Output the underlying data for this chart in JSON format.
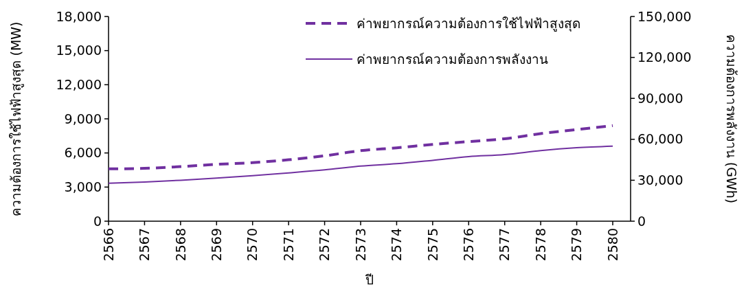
{
  "chart_data": {
    "type": "line",
    "xlabel": "ปี",
    "ylabel": "ความต้องการใช้ไฟฟ้าสูงสุด (MW)",
    "y2label": "ความต้องการพลังงาน (GWh)",
    "categories": [
      "2566",
      "2567",
      "2568",
      "2569",
      "2570",
      "2571",
      "2572",
      "2573",
      "2574",
      "2575",
      "2576",
      "2577",
      "2578",
      "2579",
      "2580"
    ],
    "series": [
      {
        "name": "ค่าพยากรณ์ความต้องการใช้ไฟฟ้าสูงสุด",
        "color": "#7030a0",
        "line_style": "dashed",
        "values": [
          4600,
          4650,
          4800,
          5000,
          5150,
          5400,
          5750,
          6200,
          6450,
          6750,
          7000,
          7250,
          7700,
          8050,
          8400
        ]
      },
      {
        "name": "ค่าพยากรณ์ความต้องการพลังงาน",
        "color": "#7030a0",
        "line_style": "solid",
        "axis": "y2",
        "values": [
          27800,
          28700,
          30000,
          31600,
          33400,
          35400,
          37600,
          40400,
          42100,
          44600,
          47300,
          48800,
          51700,
          53800,
          55000
        ]
      }
    ],
    "ylim": [
      0,
      18000
    ],
    "yticks": [
      {
        "value": 0,
        "label": "0"
      },
      {
        "value": 3000,
        "label": "3,000"
      },
      {
        "value": 6000,
        "label": "6,000"
      },
      {
        "value": 9000,
        "label": "9,000"
      },
      {
        "value": 12000,
        "label": "12,000"
      },
      {
        "value": 15000,
        "label": "15,000"
      },
      {
        "value": 18000,
        "label": "18,000"
      }
    ],
    "y2lim": [
      0,
      150000
    ],
    "y2ticks": [
      {
        "value": 0,
        "label": "0"
      },
      {
        "value": 30000,
        "label": "30,000"
      },
      {
        "value": 60000,
        "label": "60,000"
      },
      {
        "value": 90000,
        "label": "90,000"
      },
      {
        "value": 120000,
        "label": "120,000"
      },
      {
        "value": 150000,
        "label": "150,000"
      }
    ],
    "grid": false,
    "legend": "top right",
    "marker": "none"
  }
}
